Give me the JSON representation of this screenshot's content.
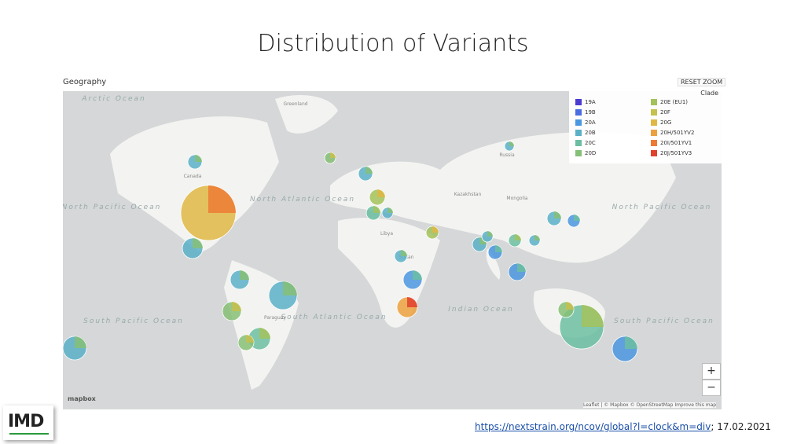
{
  "header": {
    "title": "Distribution of Variants"
  },
  "panel": {
    "title": "Geography",
    "reset_button": "RESET ZOOM"
  },
  "legend": {
    "title": "Clade",
    "items": [
      {
        "label": "19A",
        "color": "#4b3bd0"
      },
      {
        "label": "19B",
        "color": "#4a6ee0"
      },
      {
        "label": "20A",
        "color": "#4b97e0"
      },
      {
        "label": "20B",
        "color": "#5bb0c8"
      },
      {
        "label": "20C",
        "color": "#6bbea2"
      },
      {
        "label": "20D",
        "color": "#86c076"
      },
      {
        "label": "20E (EU1)",
        "color": "#a3c25c"
      },
      {
        "label": "20F",
        "color": "#c6c04f"
      },
      {
        "label": "20G",
        "color": "#dfb744"
      },
      {
        "label": "20H/501YV2",
        "color": "#eca13e"
      },
      {
        "label": "20I/501YV1",
        "color": "#ed7b35"
      },
      {
        "label": "20J/501YV3",
        "color": "#e0402e"
      }
    ]
  },
  "map_labels": [
    "Arctic Ocean",
    "Greenland",
    "Canada",
    "North Pacific Ocean",
    "North Atlantic Ocean",
    "South Atlantic Ocean",
    "Indian Ocean",
    "South Pacific Ocean",
    "South Pacific Ocean",
    "North Pacific Ocean",
    "Russia",
    "Kazakhstan",
    "Mongolia",
    "Libya",
    "Sudan",
    "Paraguay"
  ],
  "controls": {
    "zoom_in": "+",
    "zoom_out": "−"
  },
  "attribution": "Leaflet | © Mapbox © OpenStreetMap Improve this map",
  "mapbox_logo": "mapbox",
  "source": {
    "link": "https://nextstrain.org/ncov/global?l=clock&m=div",
    "date": "; 17.02.2021"
  },
  "logo": "IMD"
}
